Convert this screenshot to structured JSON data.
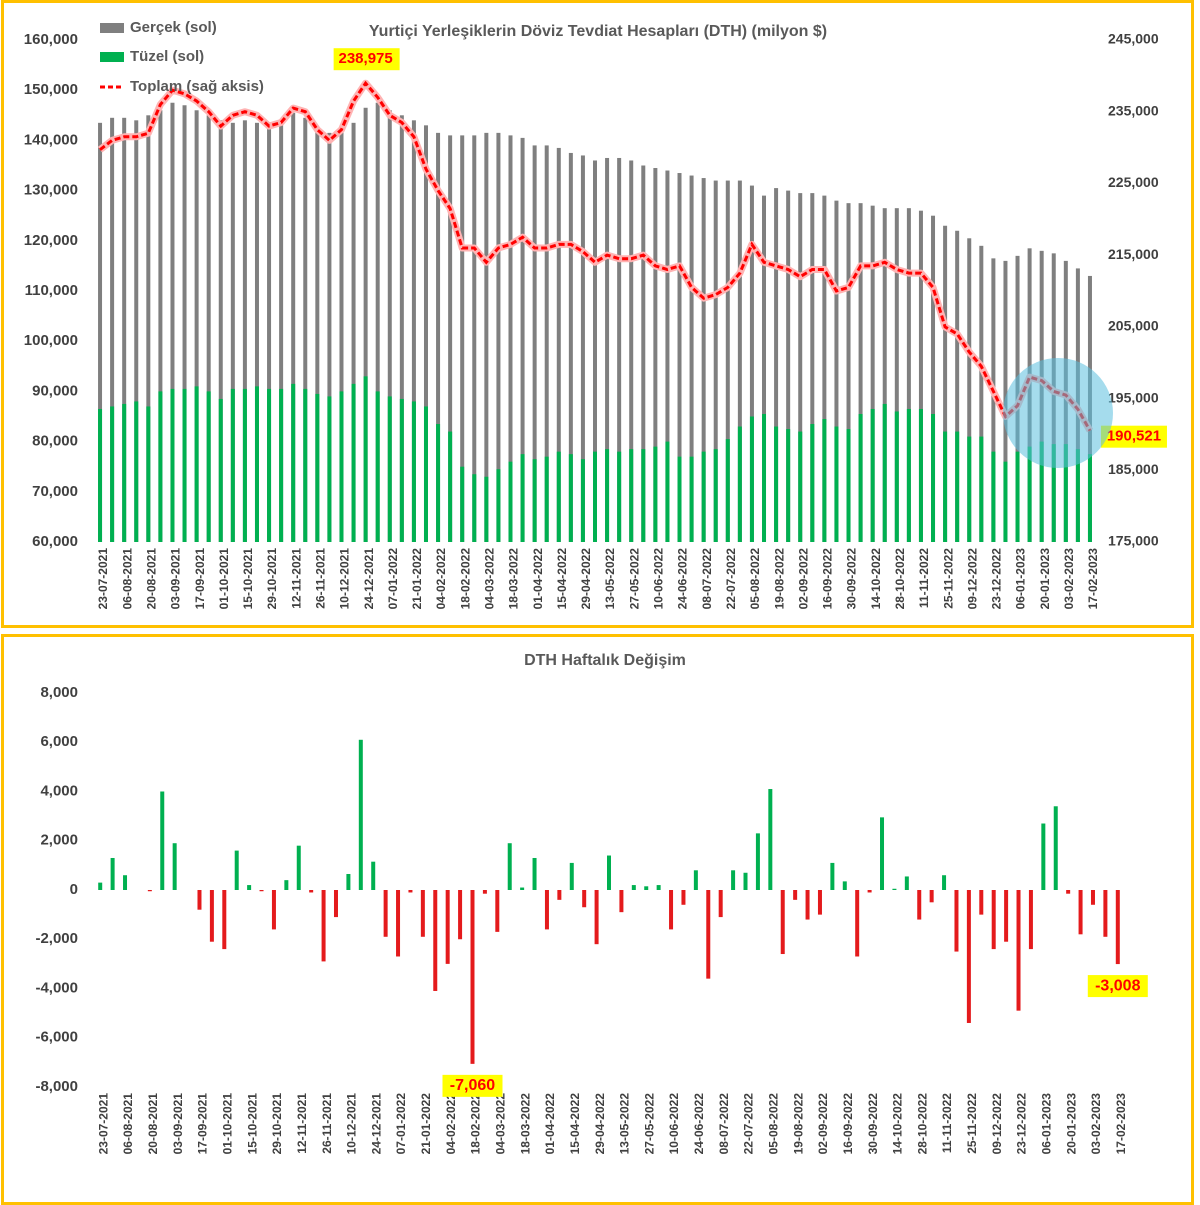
{
  "chart_data": [
    {
      "type": "combo",
      "title": "Yurtiçi Yerleşiklerin Döviz Tevdiat Hesapları (DTH) (milyon $)",
      "legend": "upper left",
      "categories": [
        "23-07-2021",
        null,
        "06-08-2021",
        null,
        "20-08-2021",
        null,
        "03-09-2021",
        null,
        "17-09-2021",
        null,
        "01-10-2021",
        null,
        "15-10-2021",
        null,
        "29-10-2021",
        null,
        "12-11-2021",
        null,
        "26-11-2021",
        null,
        "10-12-2021",
        null,
        "24-12-2021",
        null,
        "07-01-2022",
        null,
        "21-01-2022",
        null,
        "04-02-2022",
        null,
        "18-02-2022",
        null,
        "04-03-2022",
        null,
        "18-03-2022",
        null,
        "01-04-2022",
        null,
        "15-04-2022",
        null,
        "29-04-2022",
        null,
        "13-05-2022",
        null,
        "27-05-2022",
        null,
        "10-06-2022",
        null,
        "24-06-2022",
        null,
        "08-07-2022",
        null,
        "22-07-2022",
        null,
        "05-08-2022",
        null,
        "19-08-2022",
        null,
        "02-09-2022",
        null,
        "16-09-2022",
        null,
        "30-09-2022",
        null,
        "14-10-2022",
        null,
        "28-10-2022",
        null,
        "11-11-2022",
        null,
        "25-11-2022",
        null,
        "09-12-2022",
        null,
        "23-12-2022",
        null,
        "06-01-2023",
        null,
        "20-01-2023",
        null,
        "03-02-2023",
        null,
        "17-02-2023"
      ],
      "series": [
        {
          "name": "Gerçek (sol)",
          "kind": "bar",
          "color": "#7f7f7f",
          "values": [
            143500,
            144500,
            144500,
            144000,
            145000,
            146000,
            147500,
            147000,
            146000,
            145000,
            144000,
            143500,
            144000,
            143500,
            143000,
            143500,
            145500,
            144500,
            142000,
            141500,
            142500,
            143500,
            146500,
            147500,
            146000,
            145000,
            144000,
            143000,
            141500,
            141000,
            141000,
            141000,
            141500,
            141500,
            141000,
            140500,
            139000,
            139000,
            138500,
            137500,
            137000,
            136000,
            136500,
            136500,
            136000,
            135000,
            134500,
            134000,
            133500,
            133000,
            132500,
            132000,
            132000,
            132000,
            131000,
            129000,
            130500,
            130000,
            129500,
            129500,
            129000,
            128000,
            127500,
            127500,
            127000,
            126500,
            126500,
            126500,
            126000,
            125000,
            123000,
            122000,
            120500,
            119000,
            116500,
            116000,
            117000,
            118500,
            118000,
            117500,
            116000,
            114500,
            113000
          ]
        },
        {
          "name": "Tüzel (sol)",
          "kind": "bar",
          "color": "#00b050",
          "values": [
            86500,
            87000,
            87500,
            88000,
            87000,
            90000,
            90500,
            90500,
            91000,
            90000,
            88500,
            90500,
            90500,
            91000,
            90500,
            90500,
            91500,
            90500,
            89500,
            89000,
            90000,
            91500,
            93000,
            90000,
            89000,
            88500,
            88000,
            87000,
            83500,
            82000,
            75000,
            73500,
            73000,
            74500,
            76000,
            77500,
            76500,
            77000,
            78000,
            77500,
            76500,
            78000,
            78500,
            78000,
            78500,
            78500,
            79000,
            80000,
            77000,
            77000,
            78000,
            78500,
            80500,
            83000,
            85000,
            85500,
            83000,
            82500,
            82000,
            83500,
            84500,
            83000,
            82500,
            85500,
            86500,
            87500,
            86000,
            86500,
            86500,
            85500,
            82000,
            82000,
            81000,
            81000,
            78000,
            76000,
            78000,
            79000,
            80000,
            79500,
            79500,
            78500,
            77500
          ]
        },
        {
          "name": "Toplam (sağ aksis)",
          "kind": "line",
          "axis": "y2",
          "color": "#ff0000",
          "values": [
            229700,
            231000,
            231500,
            231500,
            232000,
            236000,
            238000,
            237500,
            236500,
            235000,
            233000,
            234500,
            235000,
            234500,
            233000,
            233500,
            235500,
            235000,
            232500,
            231000,
            232500,
            236500,
            238975,
            237000,
            234500,
            233500,
            231500,
            227000,
            224000,
            221500,
            216000,
            216000,
            214000,
            216000,
            216500,
            217500,
            216000,
            216000,
            216500,
            216500,
            215500,
            214000,
            215000,
            214500,
            214500,
            215000,
            213500,
            213000,
            213500,
            210500,
            209000,
            209500,
            210500,
            212500,
            216500,
            214000,
            213500,
            213000,
            212000,
            213000,
            213000,
            210000,
            210500,
            213500,
            213500,
            214000,
            213000,
            212500,
            212500,
            210500,
            205000,
            204000,
            201500,
            199500,
            196000,
            192500,
            194000,
            198000,
            197500,
            196000,
            195500,
            193500,
            190521
          ]
        }
      ],
      "annotations": [
        {
          "series": 2,
          "index": 22,
          "text": "238,975"
        },
        {
          "series": 2,
          "index": 82,
          "text": "190,521"
        }
      ],
      "ylim": [
        60000,
        160000
      ],
      "yticks": [
        {
          "value": 60000,
          "label": "60,000"
        },
        {
          "value": 70000,
          "label": "70,000"
        },
        {
          "value": 80000,
          "label": "80,000"
        },
        {
          "value": 90000,
          "label": "90,000"
        },
        {
          "value": 100000,
          "label": "100,000"
        },
        {
          "value": 110000,
          "label": "110,000"
        },
        {
          "value": 120000,
          "label": "120,000"
        },
        {
          "value": 130000,
          "label": "130,000"
        },
        {
          "value": 140000,
          "label": "140,000"
        },
        {
          "value": 150000,
          "label": "150,000"
        },
        {
          "value": 160000,
          "label": "160,000"
        }
      ],
      "y2lim": [
        175000,
        245000
      ],
      "y2ticks": [
        {
          "value": 175000,
          "label": "175,000"
        },
        {
          "value": 185000,
          "label": "185,000"
        },
        {
          "value": 195000,
          "label": "195,000"
        },
        {
          "value": 205000,
          "label": "205,000"
        },
        {
          "value": 215000,
          "label": "215,000"
        },
        {
          "value": 225000,
          "label": "225,000"
        },
        {
          "value": 235000,
          "label": "235,000"
        },
        {
          "value": 245000,
          "label": "245,000"
        }
      ]
    },
    {
      "type": "bar",
      "title": "DTH Haftalık Değişim",
      "categories": [
        "23-07-2021",
        null,
        "06-08-2021",
        null,
        "20-08-2021",
        null,
        "03-09-2021",
        null,
        "17-09-2021",
        null,
        "01-10-2021",
        null,
        "15-10-2021",
        null,
        "29-10-2021",
        null,
        "12-11-2021",
        null,
        "26-11-2021",
        null,
        "10-12-2021",
        null,
        "24-12-2021",
        null,
        "07-01-2022",
        null,
        "21-01-2022",
        null,
        "04-02-2022",
        null,
        "18-02-2022",
        null,
        "04-03-2022",
        null,
        "18-03-2022",
        null,
        "01-04-2022",
        null,
        "15-04-2022",
        null,
        "29-04-2022",
        null,
        "13-05-2022",
        null,
        "27-05-2022",
        null,
        "10-06-2022",
        null,
        "24-06-2022",
        null,
        "08-07-2022",
        null,
        "22-07-2022",
        null,
        "05-08-2022",
        null,
        "19-08-2022",
        null,
        "02-09-2022",
        null,
        "16-09-2022",
        null,
        "30-09-2022",
        null,
        "14-10-2022",
        null,
        "28-10-2022",
        null,
        "11-11-2022",
        null,
        "25-11-2022",
        null,
        "09-12-2022",
        null,
        "23-12-2022",
        null,
        "06-01-2023",
        null,
        "20-01-2023",
        null,
        "03-02-2023",
        null,
        "17-02-2023"
      ],
      "values": [
        300,
        1300,
        600,
        0,
        -50,
        4000,
        1900,
        0,
        -800,
        -2100,
        -2400,
        1600,
        200,
        -50,
        -1600,
        400,
        1800,
        -100,
        -2900,
        -1100,
        650,
        6100,
        1150,
        -1900,
        -2700,
        -100,
        -1900,
        -4100,
        -3000,
        -2000,
        -7060,
        -150,
        -1700,
        1900,
        100,
        1300,
        -1600,
        -400,
        1100,
        -700,
        -2200,
        1400,
        -900,
        200,
        150,
        200,
        -1600,
        -600,
        800,
        -3600,
        -1100,
        800,
        700,
        2300,
        4100,
        -2600,
        -400,
        -1200,
        -1000,
        1100,
        350,
        -2700,
        -100,
        2950,
        50,
        550,
        -1200,
        -500,
        600,
        -2500,
        -5400,
        -1000,
        -2400,
        -2100,
        -4900,
        -2400,
        2700,
        3400,
        -150,
        -1800,
        -600,
        -1900,
        -3008
      ],
      "positive_color": "#00b050",
      "negative_color": "#e41a1c",
      "annotations": [
        {
          "index": 30,
          "text": "-7,060"
        },
        {
          "index": 82,
          "text": "-3,008"
        }
      ],
      "ylim": [
        -8000,
        8000
      ],
      "yticks": [
        {
          "value": -8000,
          "label": "-8,000"
        },
        {
          "value": -6000,
          "label": "-6,000"
        },
        {
          "value": -4000,
          "label": "-4,000"
        },
        {
          "value": -2000,
          "label": "-2,000"
        },
        0,
        {
          "value": 2000,
          "label": "2,000"
        },
        {
          "value": 4000,
          "label": "4,000"
        },
        {
          "value": 6000,
          "label": "6,000"
        },
        {
          "value": 8000,
          "label": "8,000"
        }
      ]
    }
  ]
}
